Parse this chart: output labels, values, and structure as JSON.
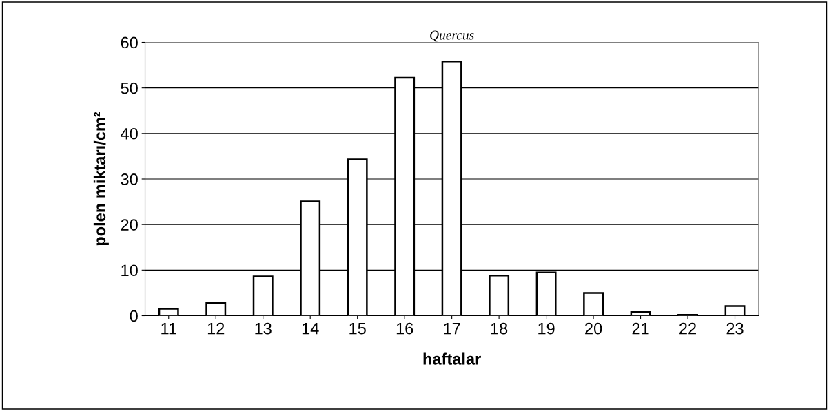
{
  "chart_data": {
    "type": "bar",
    "title": "Quercus",
    "xlabel": "haftalar",
    "ylabel": "polen miktarı/cm²",
    "categories": [
      "11",
      "12",
      "13",
      "14",
      "15",
      "16",
      "17",
      "18",
      "19",
      "20",
      "21",
      "22",
      "23"
    ],
    "values": [
      1.5,
      2.8,
      8.6,
      25.1,
      34.3,
      52.2,
      55.8,
      8.8,
      9.5,
      5.0,
      0.8,
      0.2,
      2.1
    ],
    "color": "#ffffff",
    "ylim": [
      0,
      60
    ],
    "yticks": [
      0,
      10,
      20,
      30,
      40,
      50,
      60
    ],
    "grid": "y"
  }
}
